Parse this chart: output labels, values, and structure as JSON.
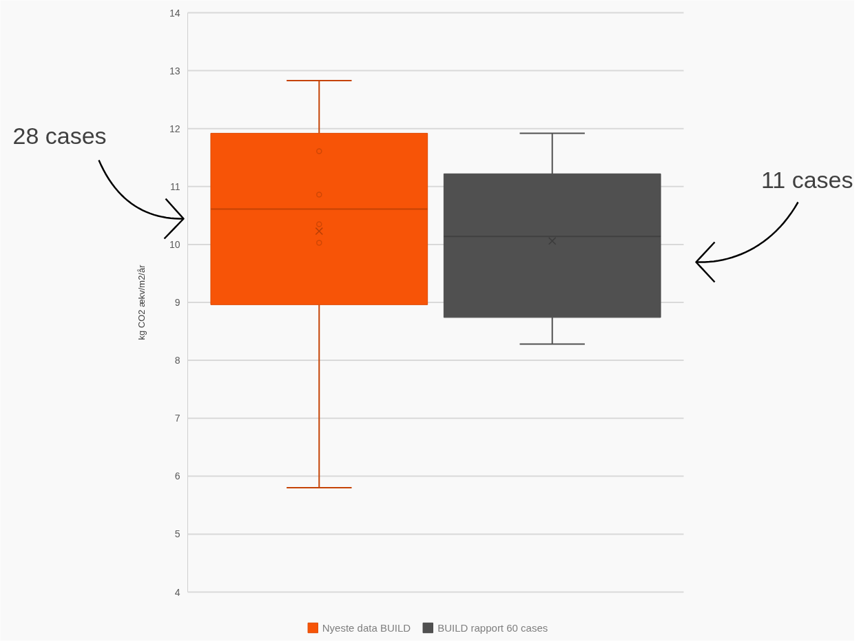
{
  "chart_data": {
    "type": "box",
    "ylabel": "kg CO2 ækv/m2/år",
    "categories": [
      null
    ],
    "ylim": [
      4,
      14
    ],
    "yticks": [
      4,
      5,
      6,
      7,
      8,
      9,
      10,
      11,
      12,
      13,
      14
    ],
    "grid": "y",
    "legend": "bottom",
    "tick_labels": "y",
    "annotations": [
      "28 cases",
      "11 cases"
    ],
    "series": [
      {
        "name": "Nyeste data BUILD",
        "color": "#f75407",
        "boxes": [
          {
            "low": 5.8,
            "q1": 8.96,
            "median": 10.61,
            "q3": 11.92,
            "high": 12.83,
            "mean": 10.23,
            "outliers": [
              11.61,
              10.86,
              10.35,
              10.03
            ]
          }
        ]
      },
      {
        "name": "BUILD rapport 60 cases",
        "color": "#505050",
        "boxes": [
          {
            "low": 8.28,
            "q1": 8.74,
            "median": 10.14,
            "q3": 11.22,
            "high": 11.92,
            "mean": 10.06
          }
        ]
      }
    ]
  }
}
